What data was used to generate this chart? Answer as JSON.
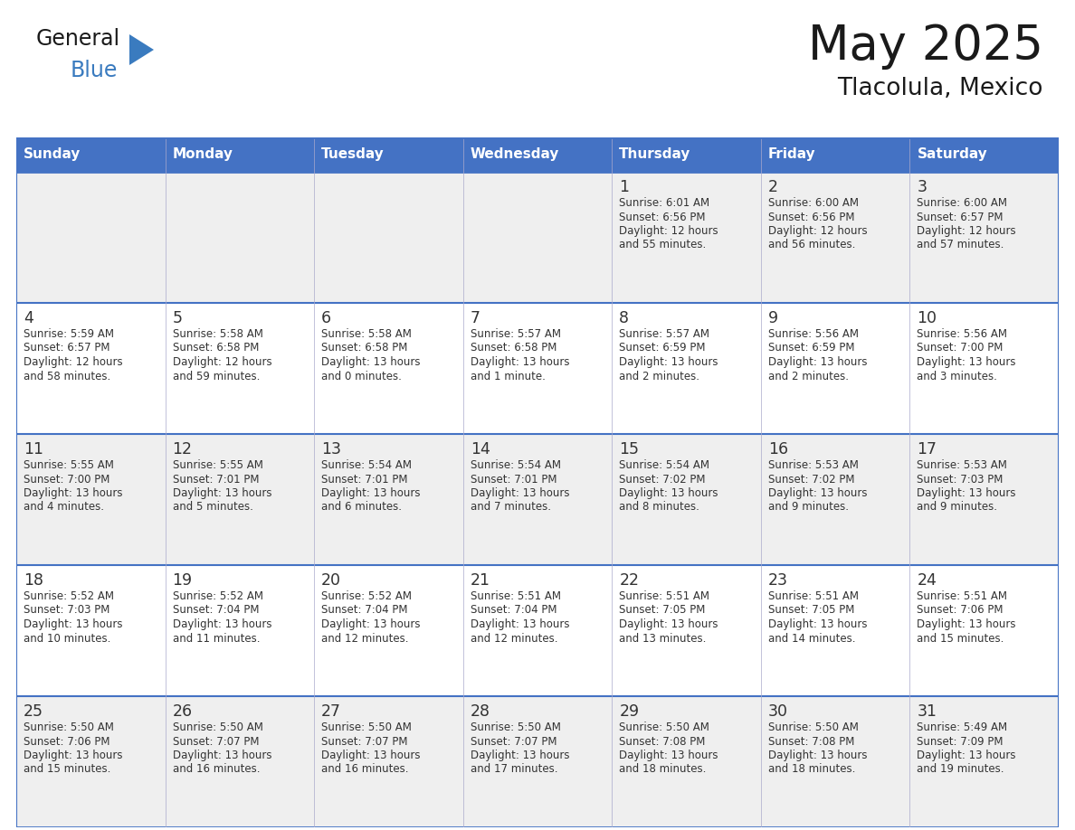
{
  "title": "May 2025",
  "subtitle": "Tlacolula, Mexico",
  "days_of_week": [
    "Sunday",
    "Monday",
    "Tuesday",
    "Wednesday",
    "Thursday",
    "Friday",
    "Saturday"
  ],
  "header_bg": "#4472C4",
  "header_text_color": "#FFFFFF",
  "cell_bg_light": "#EFEFEF",
  "cell_bg_white": "#FFFFFF",
  "cell_text_color": "#333333",
  "border_color": "#4472C4",
  "inner_border_color": "#AAAACC",
  "title_color": "#1a1a1a",
  "logo_blue_color": "#3a7bbf",
  "calendar": [
    [
      null,
      null,
      null,
      null,
      {
        "day": 1,
        "sunrise": "6:01 AM",
        "sunset": "6:56 PM",
        "daylight": "12 hours and 55 minutes."
      },
      {
        "day": 2,
        "sunrise": "6:00 AM",
        "sunset": "6:56 PM",
        "daylight": "12 hours and 56 minutes."
      },
      {
        "day": 3,
        "sunrise": "6:00 AM",
        "sunset": "6:57 PM",
        "daylight": "12 hours and 57 minutes."
      }
    ],
    [
      {
        "day": 4,
        "sunrise": "5:59 AM",
        "sunset": "6:57 PM",
        "daylight": "12 hours and 58 minutes."
      },
      {
        "day": 5,
        "sunrise": "5:58 AM",
        "sunset": "6:58 PM",
        "daylight": "12 hours and 59 minutes."
      },
      {
        "day": 6,
        "sunrise": "5:58 AM",
        "sunset": "6:58 PM",
        "daylight": "13 hours and 0 minutes."
      },
      {
        "day": 7,
        "sunrise": "5:57 AM",
        "sunset": "6:58 PM",
        "daylight": "13 hours and 1 minute."
      },
      {
        "day": 8,
        "sunrise": "5:57 AM",
        "sunset": "6:59 PM",
        "daylight": "13 hours and 2 minutes."
      },
      {
        "day": 9,
        "sunrise": "5:56 AM",
        "sunset": "6:59 PM",
        "daylight": "13 hours and 2 minutes."
      },
      {
        "day": 10,
        "sunrise": "5:56 AM",
        "sunset": "7:00 PM",
        "daylight": "13 hours and 3 minutes."
      }
    ],
    [
      {
        "day": 11,
        "sunrise": "5:55 AM",
        "sunset": "7:00 PM",
        "daylight": "13 hours and 4 minutes."
      },
      {
        "day": 12,
        "sunrise": "5:55 AM",
        "sunset": "7:01 PM",
        "daylight": "13 hours and 5 minutes."
      },
      {
        "day": 13,
        "sunrise": "5:54 AM",
        "sunset": "7:01 PM",
        "daylight": "13 hours and 6 minutes."
      },
      {
        "day": 14,
        "sunrise": "5:54 AM",
        "sunset": "7:01 PM",
        "daylight": "13 hours and 7 minutes."
      },
      {
        "day": 15,
        "sunrise": "5:54 AM",
        "sunset": "7:02 PM",
        "daylight": "13 hours and 8 minutes."
      },
      {
        "day": 16,
        "sunrise": "5:53 AM",
        "sunset": "7:02 PM",
        "daylight": "13 hours and 9 minutes."
      },
      {
        "day": 17,
        "sunrise": "5:53 AM",
        "sunset": "7:03 PM",
        "daylight": "13 hours and 9 minutes."
      }
    ],
    [
      {
        "day": 18,
        "sunrise": "5:52 AM",
        "sunset": "7:03 PM",
        "daylight": "13 hours and 10 minutes."
      },
      {
        "day": 19,
        "sunrise": "5:52 AM",
        "sunset": "7:04 PM",
        "daylight": "13 hours and 11 minutes."
      },
      {
        "day": 20,
        "sunrise": "5:52 AM",
        "sunset": "7:04 PM",
        "daylight": "13 hours and 12 minutes."
      },
      {
        "day": 21,
        "sunrise": "5:51 AM",
        "sunset": "7:04 PM",
        "daylight": "13 hours and 12 minutes."
      },
      {
        "day": 22,
        "sunrise": "5:51 AM",
        "sunset": "7:05 PM",
        "daylight": "13 hours and 13 minutes."
      },
      {
        "day": 23,
        "sunrise": "5:51 AM",
        "sunset": "7:05 PM",
        "daylight": "13 hours and 14 minutes."
      },
      {
        "day": 24,
        "sunrise": "5:51 AM",
        "sunset": "7:06 PM",
        "daylight": "13 hours and 15 minutes."
      }
    ],
    [
      {
        "day": 25,
        "sunrise": "5:50 AM",
        "sunset": "7:06 PM",
        "daylight": "13 hours and 15 minutes."
      },
      {
        "day": 26,
        "sunrise": "5:50 AM",
        "sunset": "7:07 PM",
        "daylight": "13 hours and 16 minutes."
      },
      {
        "day": 27,
        "sunrise": "5:50 AM",
        "sunset": "7:07 PM",
        "daylight": "13 hours and 16 minutes."
      },
      {
        "day": 28,
        "sunrise": "5:50 AM",
        "sunset": "7:07 PM",
        "daylight": "13 hours and 17 minutes."
      },
      {
        "day": 29,
        "sunrise": "5:50 AM",
        "sunset": "7:08 PM",
        "daylight": "13 hours and 18 minutes."
      },
      {
        "day": 30,
        "sunrise": "5:50 AM",
        "sunset": "7:08 PM",
        "daylight": "13 hours and 18 minutes."
      },
      {
        "day": 31,
        "sunrise": "5:49 AM",
        "sunset": "7:09 PM",
        "daylight": "13 hours and 19 minutes."
      }
    ]
  ]
}
